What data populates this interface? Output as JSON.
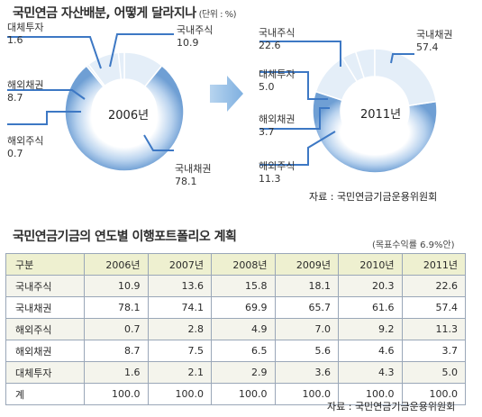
{
  "chart_data": [
    {
      "type": "pie",
      "center_label": "2006년",
      "categories": [
        "국내주식",
        "국내채권",
        "해외주식",
        "해외채권",
        "대체투자"
      ],
      "values": [
        10.9,
        78.1,
        0.7,
        8.7,
        1.6
      ]
    },
    {
      "type": "pie",
      "center_label": "2011년",
      "categories": [
        "국내주식",
        "국내채권",
        "해외주식",
        "해외채권",
        "대체투자"
      ],
      "values": [
        22.6,
        57.4,
        11.3,
        3.7,
        5.0
      ]
    },
    {
      "type": "table",
      "title": "국민연금기금의 연도별 이행포트폴리오 계획",
      "note": "(목표수익률 6.9%안)",
      "columns": [
        "구분",
        "2006년",
        "2007년",
        "2008년",
        "2009년",
        "2010년",
        "2011년"
      ],
      "rows": [
        [
          "국내주식",
          "10.9",
          "13.6",
          "15.8",
          "18.1",
          "20.3",
          "22.6"
        ],
        [
          "국내채권",
          "78.1",
          "74.1",
          "69.9",
          "65.7",
          "61.6",
          "57.4"
        ],
        [
          "해외주식",
          "0.7",
          "2.8",
          "4.9",
          "7.0",
          "9.2",
          "11.3"
        ],
        [
          "해외채권",
          "8.7",
          "7.5",
          "6.5",
          "5.6",
          "4.6",
          "3.7"
        ],
        [
          "대체투자",
          "1.6",
          "2.1",
          "2.9",
          "3.6",
          "4.3",
          "5.0"
        ],
        [
          "계",
          "100.0",
          "100.0",
          "100.0",
          "100.0",
          "100.0",
          "100.0"
        ]
      ],
      "source": "자료 : 국민연금기금운용위원회"
    }
  ],
  "header": {
    "title": "국민연금 자산배분, 어떻게 달라지나",
    "unit": "(단위 : %)"
  },
  "labels_2006": {
    "dom_equity": {
      "name": "국내주식",
      "value": "10.9"
    },
    "dom_bond": {
      "name": "국내채권",
      "value": "78.1"
    },
    "for_equity": {
      "name": "해외주식",
      "value": "0.7"
    },
    "for_bond": {
      "name": "해외채권",
      "value": "8.7"
    },
    "alt": {
      "name": "대체투자",
      "value": "1.6"
    }
  },
  "labels_2011": {
    "dom_equity": {
      "name": "국내주식",
      "value": "22.6"
    },
    "dom_bond": {
      "name": "국내채권",
      "value": "57.4"
    },
    "for_equity": {
      "name": "해외주식",
      "value": "11.3"
    },
    "for_bond": {
      "name": "해외채권",
      "value": "3.7"
    },
    "alt": {
      "name": "대체투자",
      "value": "5.0"
    }
  },
  "source_top": "자료 : 국민연금기금운용위원회",
  "colors": {
    "ring_dark": "#7aa8d8",
    "ring_light": "#dbe8f5",
    "wedge_light": "#e4eef8",
    "leader": "#3d78c4",
    "arrow": "#8fbbe3"
  }
}
